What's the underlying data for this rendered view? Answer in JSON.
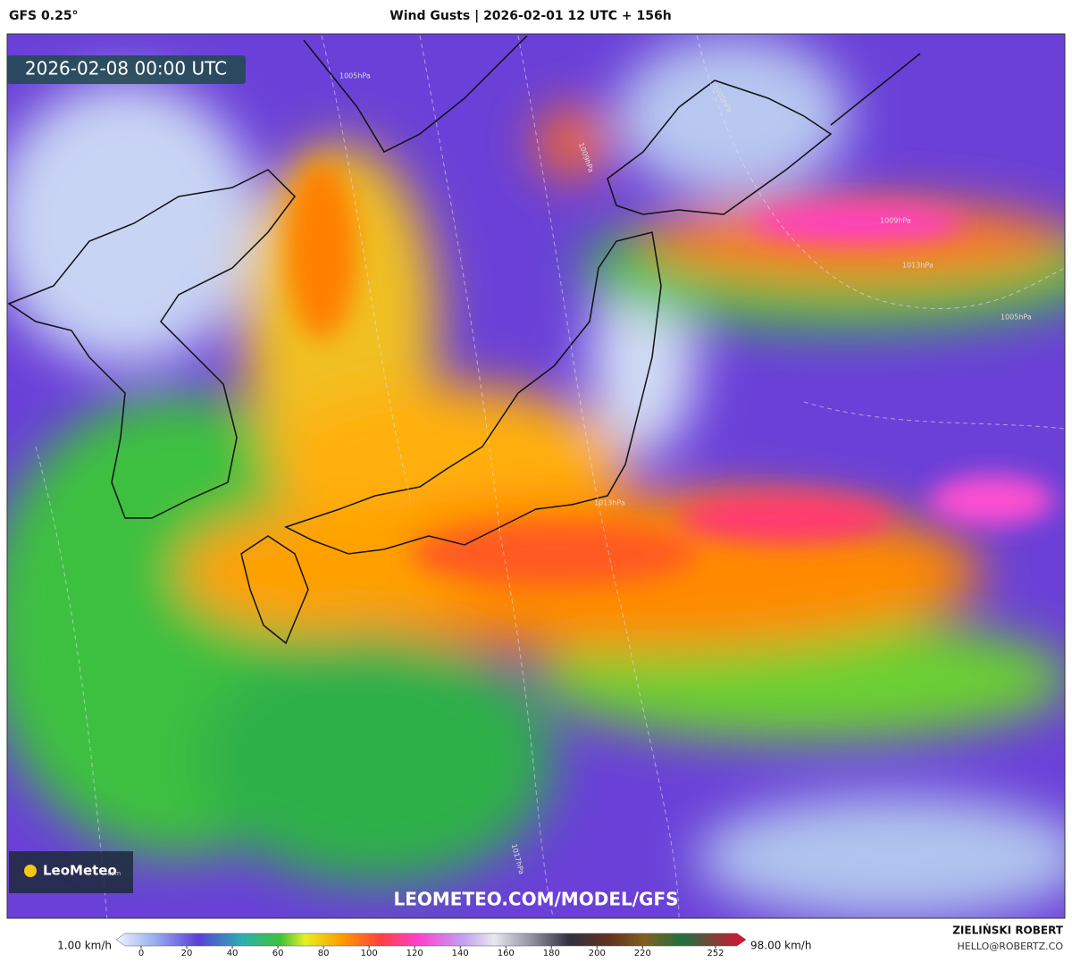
{
  "header": {
    "model": "GFS 0.25°",
    "title": "Wind Gusts | 2026-02-01 12 UTC + 156h"
  },
  "timestamp": "2026-02-08 00:00 UTC",
  "logo": {
    "brand": "LeoMeteo",
    "suffix": ".com"
  },
  "watermark": "LEOMETEO.COM/MODEL/GFS",
  "legend": {
    "min_label": "1.00 km/h",
    "max_label": "98.00 km/h",
    "ticks": [
      0,
      20,
      40,
      60,
      80,
      100,
      120,
      140,
      160,
      180,
      200,
      220,
      252
    ]
  },
  "author": {
    "name": "ZIELIŃSKI ROBERT",
    "email": "HELLO@ROBERTZ.CO"
  },
  "isobars": [
    "1005hPa",
    "1005hPa",
    "1009hPa",
    "1005hPa",
    "1013hPa",
    "1009hPa",
    "1013hPa",
    "1017hPa"
  ]
}
